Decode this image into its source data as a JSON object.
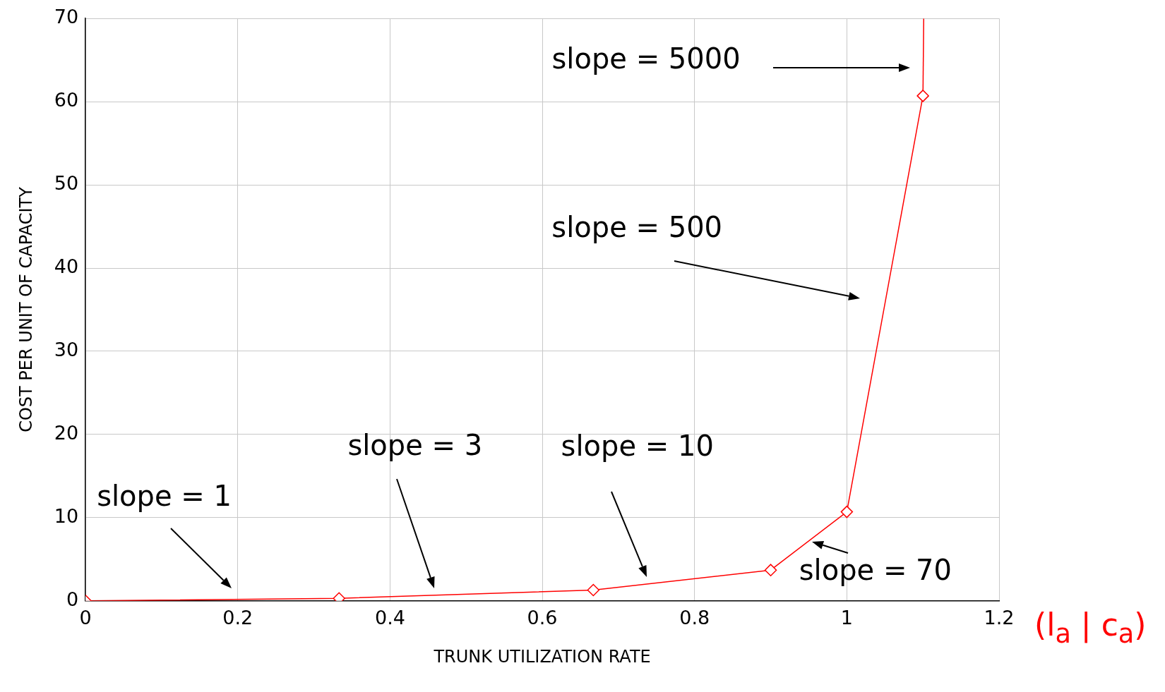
{
  "chart_data": {
    "type": "line",
    "xlabel": "TRUNK UTILIZATION RATE",
    "ylabel": "COST PER UNIT OF CAPACITY",
    "series": [
      {
        "color": "#ff0000",
        "x": [
          0,
          0.333,
          0.667,
          0.9,
          1,
          1.1
        ],
        "values": [
          0,
          0.3,
          1.3,
          3.7,
          10.7,
          60.7
        ],
        "marker": "diamond"
      },
      {
        "color": "#ff0000",
        "x": [
          1.1,
          1.101
        ],
        "values": [
          60.7,
          70
        ],
        "marker": "none"
      }
    ],
    "xlim": [
      0,
      1.2
    ],
    "xticks": [
      0,
      0.2,
      0.4,
      0.6,
      0.8,
      1,
      1.2
    ],
    "ylim": [
      0,
      70
    ],
    "yticks": [
      0,
      10,
      20,
      30,
      40,
      50,
      60,
      70
    ],
    "grid": true,
    "legend": false,
    "line_style": "solid",
    "annotations": [
      "slope = 1",
      "slope = 3",
      "slope = 10",
      "slope = 70",
      "slope = 500",
      "slope = 5000",
      "(l$_{a}$ | c$_{a}$)"
    ]
  }
}
